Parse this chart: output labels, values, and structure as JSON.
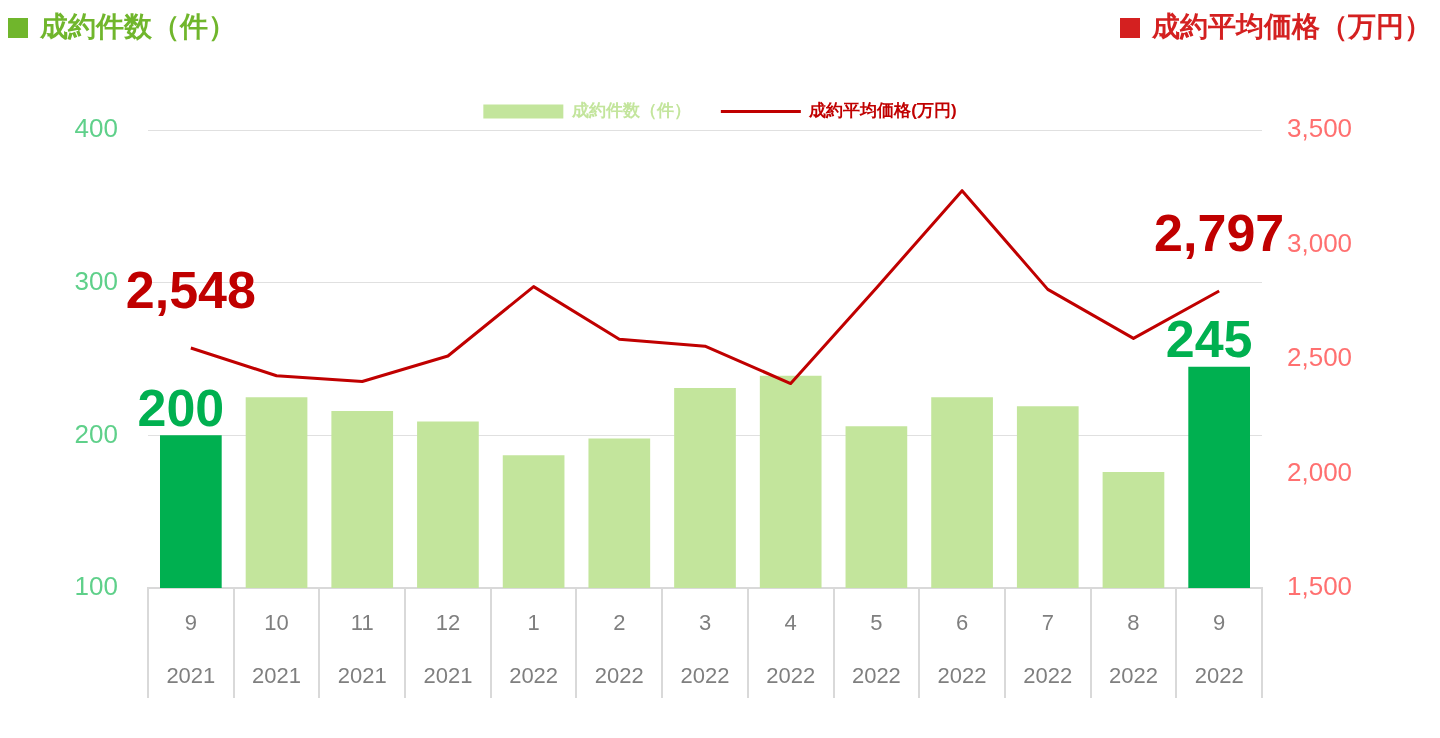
{
  "chart_data": {
    "type": "bar",
    "ylabel": "成約件数（件）",
    "y2label": "成約平均価格（万円）",
    "categories": [
      "9\n2021",
      "10\n2021",
      "11\n2021",
      "12\n2021",
      "1\n2022",
      "2\n2022",
      "3\n2022",
      "4\n2022",
      "5\n2022",
      "6\n2022",
      "7\n2022",
      "8\n2022",
      "9\n2022"
    ],
    "series": [
      {
        "name": "成約件数（件）",
        "color": "#c3e59c",
        "colors": [
          "#00b050",
          "#c3e59c",
          "#c3e59c",
          "#c3e59c",
          "#c3e59c",
          "#c3e59c",
          "#c3e59c",
          "#c3e59c",
          "#c3e59c",
          "#c3e59c",
          "#c3e59c",
          "#c3e59c",
          "#00b050"
        ],
        "values": [
          200,
          225,
          216,
          209,
          187,
          198,
          231,
          239,
          206,
          225,
          219,
          176,
          245
        ],
        "value_labels": [
          "200",
          null,
          null,
          null,
          null,
          null,
          null,
          null,
          null,
          null,
          null,
          null,
          "245"
        ]
      },
      {
        "name": "成約平均価格(万円)",
        "type": "line",
        "axis": "y2",
        "color": "#c00000",
        "marker": "none",
        "values": [
          2548,
          2427,
          2402,
          2513,
          2816,
          2586,
          2556,
          2393,
          2810,
          3235,
          2804,
          2590,
          2797
        ],
        "value_labels": [
          "2,548",
          null,
          null,
          null,
          null,
          null,
          null,
          null,
          null,
          null,
          null,
          null,
          "2,797"
        ]
      }
    ],
    "ylim": [
      100,
      400
    ],
    "yticks": [
      100,
      200,
      300,
      400
    ],
    "y2lim": [
      1500,
      3500
    ],
    "y2ticks": [
      {
        "value": 1500,
        "label": "1,500"
      },
      {
        "value": 2000,
        "label": "2,000"
      },
      {
        "value": 2500,
        "label": "2,500"
      },
      {
        "value": 3000,
        "label": "3,000"
      },
      {
        "value": 3500,
        "label": "3,500"
      }
    ],
    "grid": "y",
    "legend": "top"
  }
}
